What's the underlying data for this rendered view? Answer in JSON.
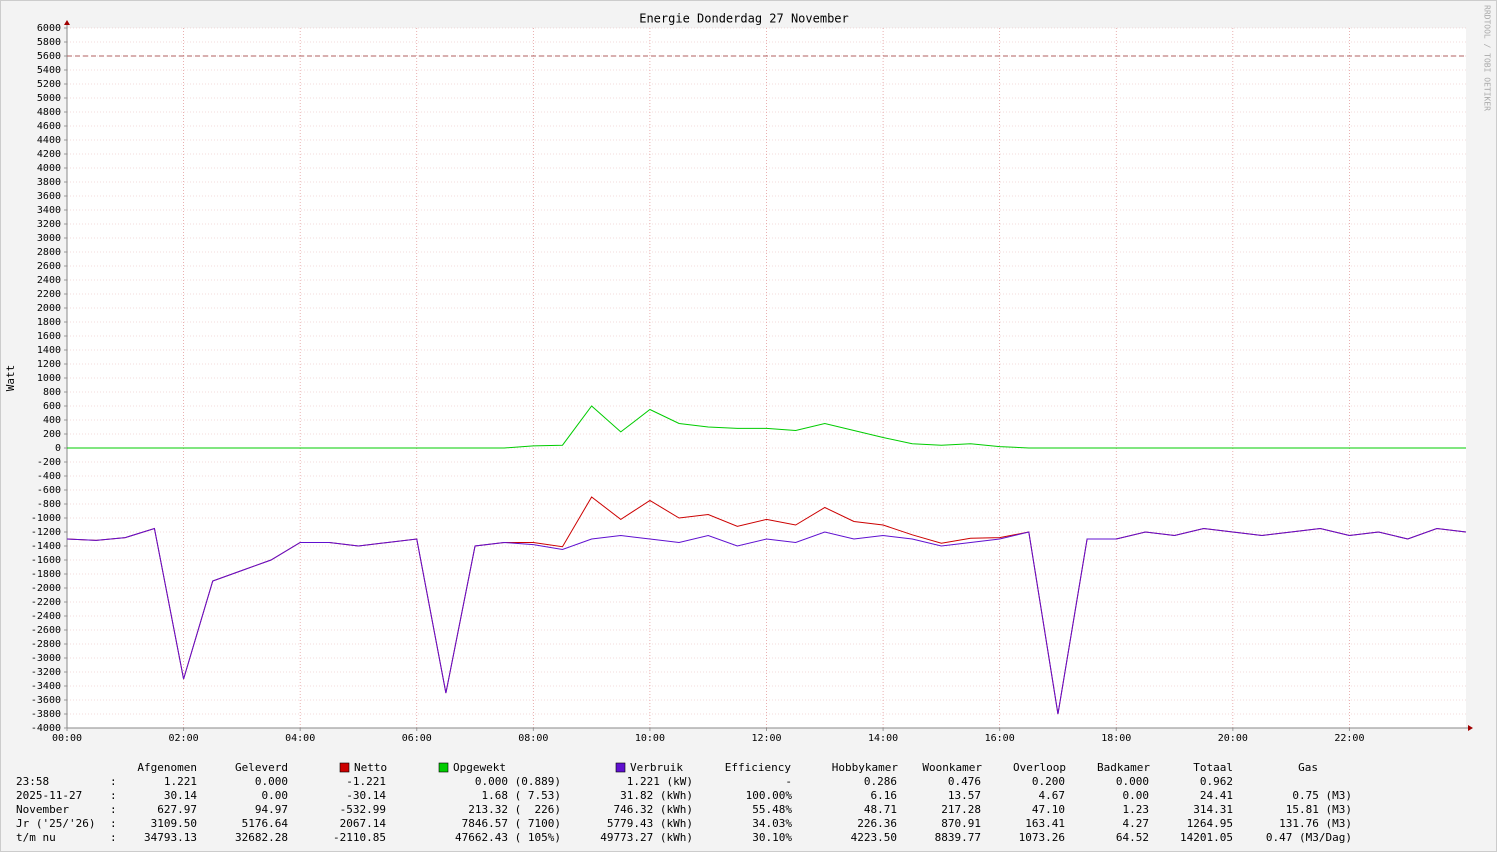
{
  "chart_data": {
    "type": "line",
    "title": "Energie Donderdag 27 November",
    "y_label": "Watt",
    "watermark": "RRDTOOL / TOBI OETIKER",
    "xlim": [
      0,
      24
    ],
    "xticks": [
      {
        "value": 0,
        "label": "00:00"
      },
      {
        "value": 2,
        "label": "02:00"
      },
      {
        "value": 4,
        "label": "04:00"
      },
      {
        "value": 6,
        "label": "06:00"
      },
      {
        "value": 8,
        "label": "08:00"
      },
      {
        "value": 10,
        "label": "10:00"
      },
      {
        "value": 12,
        "label": "12:00"
      },
      {
        "value": 14,
        "label": "14:00"
      },
      {
        "value": 16,
        "label": "16:00"
      },
      {
        "value": 18,
        "label": "18:00"
      },
      {
        "value": 20,
        "label": "20:00"
      },
      {
        "value": 22,
        "label": "22:00"
      }
    ],
    "ylim": [
      -4000,
      6000
    ],
    "yticks": [
      -4000,
      -3800,
      -3600,
      -3400,
      -3200,
      -3000,
      -2800,
      -2600,
      -2400,
      -2200,
      -2000,
      -1800,
      -1600,
      -1400,
      -1200,
      -1000,
      -800,
      -600,
      -400,
      -200,
      0,
      200,
      400,
      600,
      800,
      1000,
      1200,
      1400,
      1600,
      1800,
      2000,
      2200,
      2400,
      2600,
      2800,
      3000,
      3200,
      3400,
      3600,
      3800,
      4000,
      4200,
      4400,
      4600,
      4800,
      5000,
      5200,
      5400,
      5600,
      5800,
      6000
    ],
    "grid": true,
    "reference_line": {
      "value": 5600,
      "color": "#b06060"
    },
    "x": [
      0,
      0.5,
      1,
      1.5,
      2,
      2.5,
      3,
      3.5,
      4,
      4.5,
      5,
      5.5,
      6,
      6.5,
      7,
      7.5,
      8,
      8.5,
      9,
      9.5,
      10,
      10.5,
      11,
      11.5,
      12,
      12.5,
      13,
      13.5,
      14,
      14.5,
      15,
      15.5,
      16,
      16.5,
      17,
      17.5,
      18,
      18.5,
      19,
      19.5,
      20,
      20.5,
      21,
      21.5,
      22,
      22.5,
      23,
      23.5,
      24
    ],
    "series": [
      {
        "name": "Netto",
        "color": "#cc0000",
        "values": [
          -1300,
          -1320,
          -1280,
          -1150,
          -3300,
          -1900,
          -1750,
          -1600,
          -1350,
          -1350,
          -1400,
          -1350,
          -1300,
          -3500,
          -1400,
          -1350,
          -1350,
          -1410,
          -700,
          -1020,
          -750,
          -1000,
          -950,
          -1120,
          -1020,
          -1100,
          -850,
          -1050,
          -1100,
          -1240,
          -1360,
          -1290,
          -1280,
          -1200,
          -3800,
          -1300,
          -1300,
          -1200,
          -1250,
          -1150,
          -1200,
          -1250,
          -1200,
          -1150,
          -1250,
          -1200,
          -1300,
          -1150,
          -1200
        ]
      },
      {
        "name": "Opgewekt",
        "color": "#00cc00",
        "values": [
          0,
          0,
          0,
          0,
          0,
          0,
          0,
          0,
          0,
          0,
          0,
          0,
          0,
          0,
          0,
          0,
          30,
          40,
          600,
          230,
          550,
          350,
          300,
          280,
          280,
          250,
          350,
          250,
          150,
          60,
          40,
          60,
          20,
          0,
          0,
          0,
          0,
          0,
          0,
          0,
          0,
          0,
          0,
          0,
          0,
          0,
          0,
          0,
          0
        ]
      },
      {
        "name": "Verbruik",
        "color": "#6010d0",
        "values": [
          -1300,
          -1320,
          -1280,
          -1150,
          -3300,
          -1900,
          -1750,
          -1600,
          -1350,
          -1350,
          -1400,
          -1350,
          -1300,
          -3500,
          -1400,
          -1350,
          -1380,
          -1450,
          -1300,
          -1250,
          -1300,
          -1350,
          -1250,
          -1400,
          -1300,
          -1350,
          -1200,
          -1300,
          -1250,
          -1300,
          -1400,
          -1350,
          -1300,
          -1200,
          -3800,
          -1300,
          -1300,
          -1200,
          -1250,
          -1150,
          -1200,
          -1250,
          -1200,
          -1150,
          -1250,
          -1200,
          -1300,
          -1150,
          -1200
        ]
      }
    ],
    "table": {
      "headers": [
        "Afgenomen",
        "Geleverd",
        "Efficiency",
        "Hobbykamer",
        "Woonkamer",
        "Overloop",
        "Badkamer",
        "Totaal",
        "Gas"
      ],
      "rows": [
        {
          "label": "23:58",
          "cells": [
            ":",
            "1.221",
            "0.000",
            "-1.221",
            "0.000 (0.889)",
            "1.221 (kW)",
            "-",
            "0.286",
            "0.476",
            "0.200",
            "0.000",
            "0.962"
          ]
        },
        {
          "label": "2025-11-27",
          "cells": [
            ":",
            "30.14",
            "0.00",
            "-30.14",
            "1.68 ( 7.53)",
            "31.82 (kWh)",
            "100.00%",
            "6.16",
            "13.57",
            "4.67",
            "0.00",
            "24.41",
            "0.75 (M3)"
          ]
        },
        {
          "label": "November",
          "cells": [
            ":",
            "627.97",
            "94.97",
            "-532.99",
            "213.32 (  226)",
            "746.32 (kWh)",
            "55.48%",
            "48.71",
            "217.28",
            "47.10",
            "1.23",
            "314.31",
            "15.81 (M3)"
          ]
        },
        {
          "label": "Jr ('25/'26)",
          "cells": [
            ":",
            "3109.50",
            "5176.64",
            "2067.14",
            "7846.57 ( 7100)",
            "5779.43 (kWh)",
            "34.03%",
            "226.36",
            "870.91",
            "163.41",
            "4.27",
            "1264.95",
            "131.76 (M3)"
          ]
        },
        {
          "label": "t/m nu",
          "cells": [
            ":",
            "34793.13",
            "32682.28",
            "-2110.85",
            "47662.43 ( 105%)",
            "49773.27 (kWh)",
            "30.10%",
            "4223.50",
            "8839.77",
            "1073.26",
            "64.52",
            "14201.05",
            "0.47 (M3/Dag)"
          ]
        }
      ]
    }
  }
}
